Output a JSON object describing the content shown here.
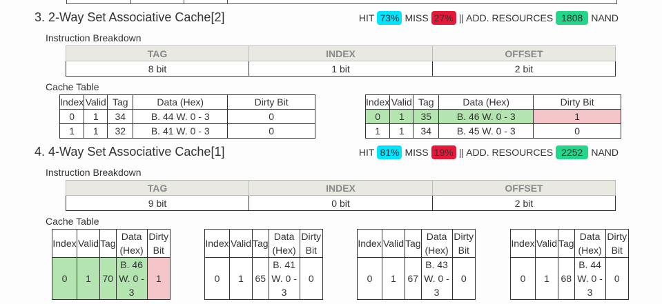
{
  "sections": [
    {
      "title": "3. 2-Way Set Associative Cache[2]",
      "hit_label": "HIT",
      "hit": "73%",
      "miss_label": "MISS",
      "miss": "27%",
      "res_label": "|| ADD. RESOURCES",
      "res": "1808",
      "res_unit": "NAND",
      "breakdown_label": "Instruction Breakdown",
      "headers": [
        "TAG",
        "INDEX",
        "OFFSET"
      ],
      "values": [
        "8 bit",
        "1 bit",
        "2 bit"
      ],
      "cache_label": "Cache Table",
      "table_headers": [
        "Index",
        "Valid",
        "Tag",
        "Data (Hex)",
        "Dirty Bit"
      ],
      "ways": [
        {
          "rows": [
            [
              "0",
              "1",
              "34",
              "B. 44 W. 0 - 3",
              "0"
            ],
            [
              "1",
              "1",
              "32",
              "B. 41 W. 0 - 3",
              "0"
            ]
          ]
        },
        {
          "rows": [
            [
              "0",
              "1",
              "35",
              "B. 46 W. 0 - 3",
              "1"
            ],
            [
              "1",
              "1",
              "34",
              "B. 45 W. 0 - 3",
              "0"
            ]
          ]
        }
      ]
    },
    {
      "title": "4. 4-Way Set Associative Cache[1]",
      "hit_label": "HIT",
      "hit": "81%",
      "miss_label": "MISS",
      "miss": "19%",
      "res_label": "|| ADD. RESOURCES",
      "res": "2252",
      "res_unit": "NAND",
      "breakdown_label": "Instruction Breakdown",
      "headers": [
        "TAG",
        "INDEX",
        "OFFSET"
      ],
      "values": [
        "9 bit",
        "0 bit",
        "2 bit"
      ],
      "cache_label": "Cache Table",
      "table_headers": [
        "Index",
        "Valid",
        "Tag",
        "Data (Hex)",
        "Dirty Bit"
      ],
      "ways": [
        {
          "rows": [
            [
              "0",
              "1",
              "70",
              "B. 46 W. 0 - 3",
              "1"
            ]
          ]
        },
        {
          "rows": [
            [
              "0",
              "1",
              "65",
              "B. 41 W. 0 - 3",
              "0"
            ]
          ]
        },
        {
          "rows": [
            [
              "0",
              "1",
              "67",
              "B. 43 W. 0 - 3",
              "0"
            ]
          ]
        },
        {
          "rows": [
            [
              "0",
              "1",
              "68",
              "B. 44 W. 0 - 3",
              "0"
            ]
          ]
        }
      ]
    }
  ],
  "colors": {
    "hit": "#00e5ff",
    "miss": "#e8173a",
    "resources": "#22d68a",
    "recent_row": "#b4e4b0",
    "dirty_cell": "#f5c6c9"
  }
}
